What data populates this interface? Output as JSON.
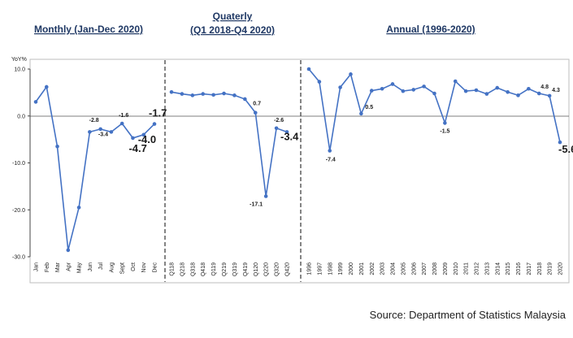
{
  "chart_data": {
    "type": "line",
    "ylabel": "YoY%",
    "ylim": [
      -30,
      10
    ],
    "yticks": [
      "10.0",
      "0.0",
      "-10.0",
      "-20.0",
      "-30.0"
    ],
    "ytick_values": [
      10,
      0,
      -10,
      -20,
      -30
    ],
    "line_color": "#4472c4",
    "source": "Source: Department of Statistics Malaysia",
    "panels": [
      {
        "title_lines": [
          "Monthly (Jan-Dec 2020)"
        ],
        "categories": [
          "Jan",
          "Feb",
          "Mar",
          "Apr",
          "May",
          "Jun",
          "Jul",
          "Aug",
          "Sept",
          "Oct",
          "Nov",
          "Dec"
        ],
        "values": [
          3.0,
          6.2,
          -6.5,
          -28.6,
          -19.5,
          -3.4,
          -2.8,
          -3.4,
          -1.6,
          -4.7,
          -4.0,
          -1.7
        ],
        "labels": [
          {
            "i": 6,
            "text": "-2.8",
            "big": false
          },
          {
            "i": 7,
            "text": "-3.4",
            "big": false
          },
          {
            "i": 8,
            "text": "-1.6",
            "big": false
          },
          {
            "i": 9,
            "text": "-4.7",
            "big": true
          },
          {
            "i": 10,
            "text": "-4.0",
            "big": true
          },
          {
            "i": 11,
            "text": "-1.7",
            "big": true
          }
        ]
      },
      {
        "title_lines": [
          "Quaterly",
          "(Q1 2018-Q4 2020)"
        ],
        "categories": [
          "Q118",
          "Q218",
          "Q318",
          "Q418",
          "Q119",
          "Q219",
          "Q319",
          "Q419",
          "Q120",
          "Q220",
          "Q320",
          "Q420"
        ],
        "values": [
          5.1,
          4.7,
          4.4,
          4.7,
          4.5,
          4.8,
          4.4,
          3.6,
          0.7,
          -17.1,
          -2.6,
          -3.4
        ],
        "labels": [
          {
            "i": 8,
            "text": "0.7",
            "big": false
          },
          {
            "i": 9,
            "text": "-17.1",
            "big": false
          },
          {
            "i": 10,
            "text": "-2.6",
            "big": false
          },
          {
            "i": 11,
            "text": "-3.4",
            "big": true
          }
        ]
      },
      {
        "title_lines": [
          "Annual (1996-2020)"
        ],
        "categories": [
          "1996",
          "1997",
          "1998",
          "1999",
          "2000",
          "2001",
          "2002",
          "2003",
          "2004",
          "2005",
          "2006",
          "2007",
          "2008",
          "2009",
          "2010",
          "2011",
          "2012",
          "2013",
          "2014",
          "2015",
          "2016",
          "2017",
          "2018",
          "2019",
          "2020"
        ],
        "values": [
          10.0,
          7.3,
          -7.4,
          6.1,
          8.9,
          0.5,
          5.4,
          5.8,
          6.8,
          5.3,
          5.6,
          6.3,
          4.8,
          -1.5,
          7.4,
          5.3,
          5.5,
          4.7,
          6.0,
          5.1,
          4.4,
          5.8,
          4.8,
          4.3,
          -5.6
        ],
        "labels": [
          {
            "i": 2,
            "text": "-7.4",
            "big": false
          },
          {
            "i": 5,
            "text": "0.5",
            "big": false
          },
          {
            "i": 13,
            "text": "-1.5",
            "big": false
          },
          {
            "i": 22,
            "text": "4.8",
            "big": false
          },
          {
            "i": 23,
            "text": "4.3",
            "big": false
          },
          {
            "i": 24,
            "text": "-5.6",
            "big": true
          }
        ]
      }
    ]
  }
}
